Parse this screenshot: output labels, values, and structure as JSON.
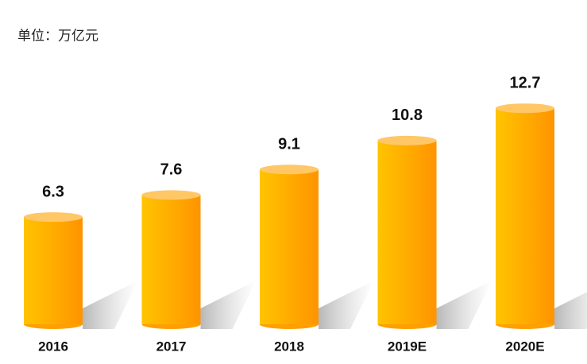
{
  "chart_data": {
    "type": "bar",
    "subtitle": "单位：万亿元",
    "categories": [
      "2016",
      "2017",
      "2018",
      "2019E",
      "2020E"
    ],
    "values": [
      6.3,
      7.6,
      9.1,
      10.8,
      12.7
    ],
    "color": "#ffa500"
  }
}
